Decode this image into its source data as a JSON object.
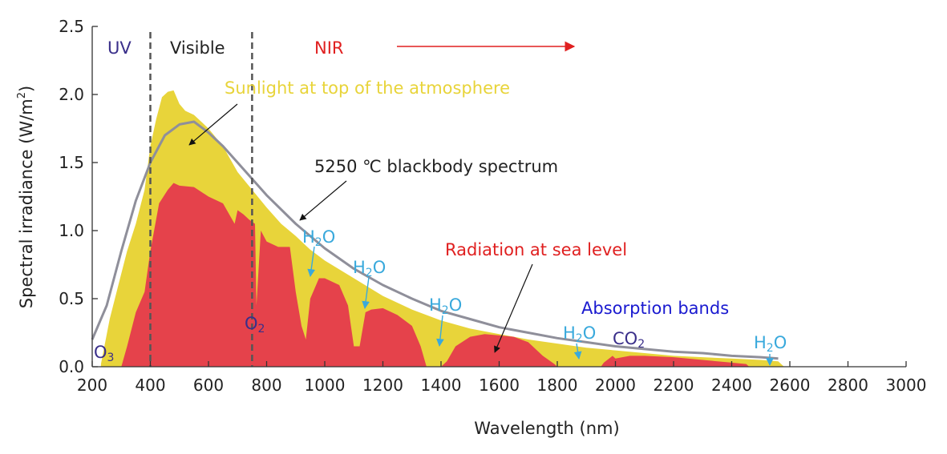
{
  "chart_data": {
    "type": "area",
    "title": "",
    "xlabel": "Wavelength (nm)",
    "ylabel": "Spectral irradiance (W/m²)",
    "ylabel_main": "Spectral irradiance (W/m",
    "ylabel_sup": "2",
    "ylabel_end": ")",
    "xlim": [
      200,
      3000
    ],
    "ylim": [
      0,
      2.5
    ],
    "xticks": [
      200,
      400,
      600,
      800,
      1000,
      1200,
      1400,
      1600,
      1800,
      2000,
      2200,
      2400,
      2600,
      2800,
      3000
    ],
    "yticks": [
      0.0,
      0.5,
      1.0,
      1.5,
      2.0,
      2.5
    ],
    "ytick_labels": [
      "0.0",
      "0.5",
      "1.0",
      "1.5",
      "2.0",
      "2.5"
    ],
    "region_lines": [
      400,
      750
    ],
    "series": [
      {
        "name": "Sunlight at top of the atmosphere",
        "color": "#e8d43a",
        "x": [
          230,
          260,
          290,
          320,
          350,
          380,
          400,
          420,
          440,
          460,
          480,
          500,
          520,
          550,
          600,
          650,
          700,
          750,
          800,
          850,
          900,
          950,
          1000,
          1100,
          1200,
          1300,
          1400,
          1500,
          1600,
          1700,
          1800,
          1900,
          2000,
          2100,
          2200,
          2300,
          2400,
          2500,
          2560,
          2580
        ],
        "y": [
          0.02,
          0.35,
          0.6,
          0.85,
          1.05,
          1.3,
          1.62,
          1.82,
          1.98,
          2.02,
          2.03,
          1.93,
          1.88,
          1.85,
          1.75,
          1.62,
          1.43,
          1.3,
          1.17,
          1.05,
          0.96,
          0.86,
          0.78,
          0.65,
          0.52,
          0.42,
          0.34,
          0.28,
          0.24,
          0.2,
          0.17,
          0.14,
          0.12,
          0.1,
          0.08,
          0.07,
          0.06,
          0.05,
          0.04,
          0.0
        ]
      },
      {
        "name": "Radiation at sea level",
        "color": "#e5424b",
        "x": [
          300,
          320,
          350,
          380,
          400,
          430,
          460,
          480,
          500,
          550,
          600,
          650,
          690,
          700,
          720,
          740,
          760,
          765,
          780,
          800,
          840,
          880,
          900,
          920,
          935,
          950,
          980,
          1000,
          1050,
          1080,
          1100,
          1120,
          1140,
          1160,
          1200,
          1250,
          1300,
          1330,
          1350,
          1400,
          1420,
          1450,
          1500,
          1550,
          1600,
          1650,
          1700,
          1750,
          1790,
          1800,
          1950,
          1960,
          1990,
          2000,
          2050,
          2100,
          2200,
          2300,
          2400,
          2450,
          2460
        ],
        "y": [
          0.0,
          0.15,
          0.4,
          0.55,
          0.85,
          1.2,
          1.3,
          1.35,
          1.33,
          1.32,
          1.25,
          1.2,
          1.05,
          1.15,
          1.12,
          1.08,
          1.05,
          0.45,
          1.0,
          0.92,
          0.88,
          0.88,
          0.55,
          0.3,
          0.2,
          0.5,
          0.65,
          0.65,
          0.6,
          0.45,
          0.15,
          0.15,
          0.4,
          0.42,
          0.43,
          0.38,
          0.3,
          0.15,
          0.0,
          0.0,
          0.04,
          0.15,
          0.22,
          0.24,
          0.23,
          0.22,
          0.18,
          0.08,
          0.02,
          0.0,
          0.0,
          0.03,
          0.08,
          0.06,
          0.08,
          0.08,
          0.07,
          0.05,
          0.03,
          0.02,
          0.0
        ]
      },
      {
        "name": "5250 ℃ blackbody spectrum",
        "color": "#8f8f9a",
        "x": [
          200,
          250,
          300,
          350,
          400,
          450,
          500,
          550,
          600,
          650,
          700,
          750,
          800,
          900,
          1000,
          1100,
          1200,
          1300,
          1400,
          1500,
          1600,
          1700,
          1800,
          1900,
          2000,
          2100,
          2200,
          2300,
          2400,
          2500,
          2560
        ],
        "y": [
          0.2,
          0.45,
          0.85,
          1.22,
          1.5,
          1.7,
          1.78,
          1.8,
          1.72,
          1.62,
          1.5,
          1.38,
          1.26,
          1.05,
          0.87,
          0.72,
          0.6,
          0.5,
          0.41,
          0.35,
          0.29,
          0.25,
          0.21,
          0.18,
          0.15,
          0.13,
          0.11,
          0.1,
          0.08,
          0.07,
          0.06
        ]
      }
    ],
    "annotations": {
      "uv": {
        "text": "UV",
        "color": "#3a2f8a"
      },
      "visible": {
        "text": "Visible",
        "color": "#222222"
      },
      "nir": {
        "text": "NIR",
        "color": "#e02020"
      },
      "sunlight": {
        "text": "Sunlight at top of the atmosphere",
        "color": "#e8d43a"
      },
      "blackbody": {
        "text": "5250 ℃ blackbody spectrum",
        "color": "#222222"
      },
      "sea_level": {
        "text": "Radiation at sea level",
        "color": "#e02020"
      },
      "absorption": {
        "text": "Absorption bands",
        "color": "#1a1ad0"
      },
      "o3": {
        "main": "O",
        "sub": "3",
        "color": "#3a2f8a"
      },
      "o2": {
        "main": "O",
        "sub": "2",
        "color": "#3a2f8a"
      },
      "co2": {
        "main": "CO",
        "sub": "2",
        "color": "#3a2f8a"
      },
      "h2o": {
        "main": "H",
        "sub": "2",
        "end": "O",
        "color": "#39a9dc"
      }
    }
  }
}
